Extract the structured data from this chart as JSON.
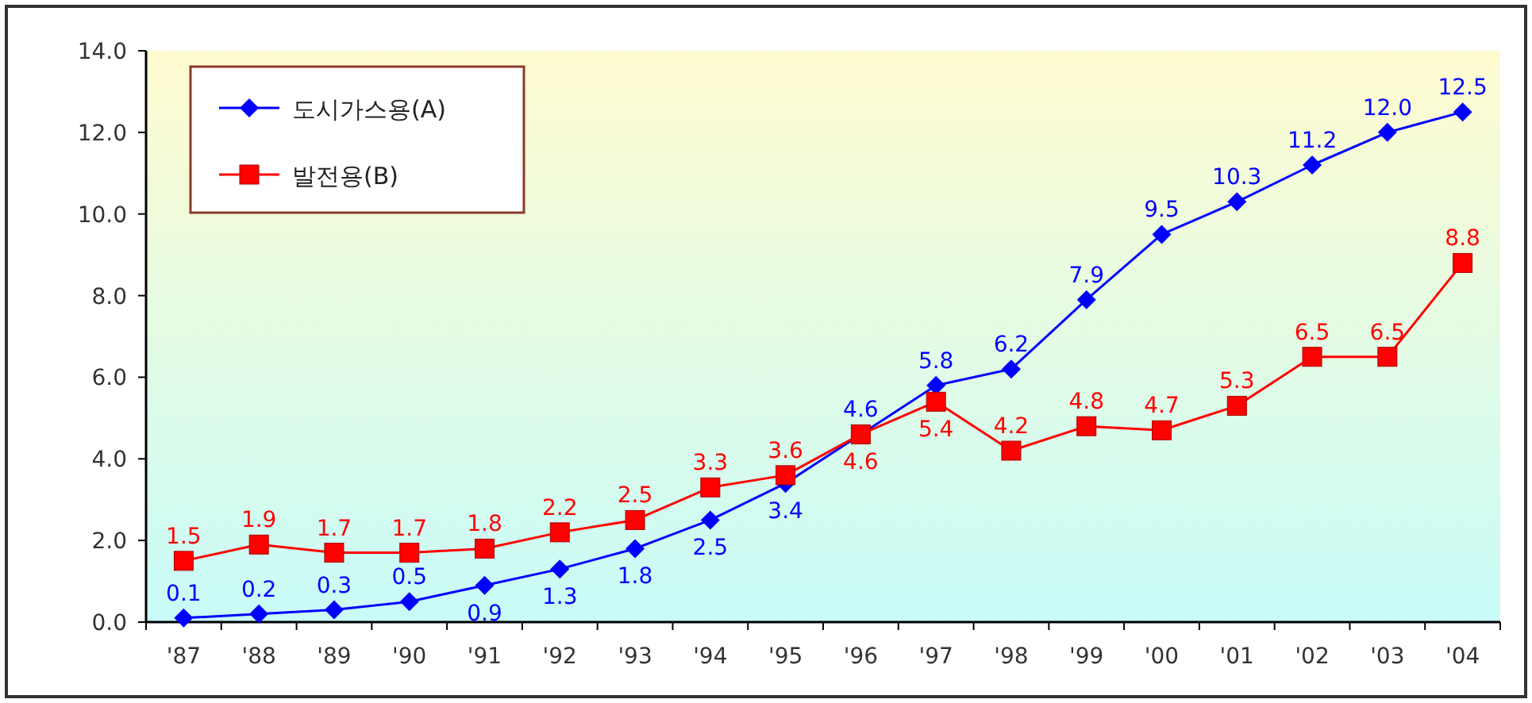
{
  "chart_data": {
    "type": "line",
    "categories": [
      "'87",
      "'88",
      "'89",
      "'90",
      "'91",
      "'92",
      "'93",
      "'94",
      "'95",
      "'96",
      "'97",
      "'98",
      "'99",
      "'00",
      "'01",
      "'02",
      "'03",
      "'04"
    ],
    "series": [
      {
        "name": "도시가스용(A)",
        "color": "#0000ff",
        "marker": "diamond",
        "values": [
          0.1,
          0.2,
          0.3,
          0.5,
          0.9,
          1.3,
          1.8,
          2.5,
          3.4,
          4.6,
          5.8,
          6.2,
          7.9,
          9.5,
          10.3,
          11.2,
          12.0,
          12.5
        ],
        "value_labels": [
          "0.1",
          "0.2",
          "0.3",
          "0.5",
          "0.9",
          "1.3",
          "1.8",
          "2.5",
          "3.4",
          "4.6",
          "5.8",
          "6.2",
          "7.9",
          "9.5",
          "10.3",
          "11.2",
          "12.0",
          "12.5"
        ]
      },
      {
        "name": "발전용(B)",
        "color": "#ff0000",
        "marker": "square",
        "values": [
          1.5,
          1.9,
          1.7,
          1.7,
          1.8,
          2.2,
          2.5,
          3.3,
          3.6,
          4.6,
          5.4,
          4.2,
          4.8,
          4.7,
          5.3,
          6.5,
          6.5,
          8.8
        ],
        "value_labels": [
          "1.5",
          "1.9",
          "1.7",
          "1.7",
          "1.8",
          "2.2",
          "2.5",
          "3.3",
          "3.6",
          "4.6",
          "5.4",
          "4.2",
          "4.8",
          "4.7",
          "5.3",
          "6.5",
          "6.5",
          "8.8"
        ]
      }
    ],
    "ylim": [
      0,
      14
    ],
    "yticks": [
      {
        "value": 0,
        "label": "0.0"
      },
      {
        "value": 2,
        "label": "2.0"
      },
      {
        "value": 4,
        "label": "4.0"
      },
      {
        "value": 6,
        "label": "6.0"
      },
      {
        "value": 8,
        "label": "8.0"
      },
      {
        "value": 10,
        "label": "10.0"
      },
      {
        "value": 12,
        "label": "12.0"
      },
      {
        "value": 14,
        "label": "14.0"
      }
    ],
    "legend": "top left",
    "grid": false
  }
}
